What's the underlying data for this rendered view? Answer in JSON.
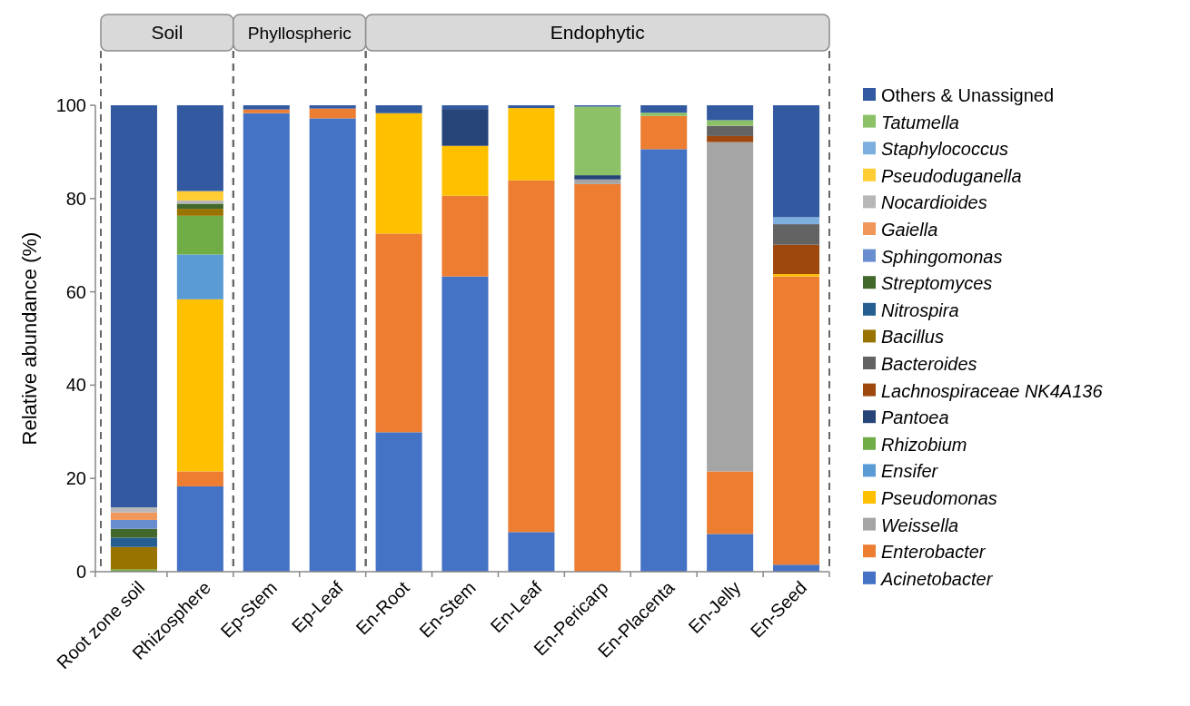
{
  "chart_data": {
    "type": "bar",
    "stacked": true,
    "ylabel": "Relative abundance (%)",
    "ylim": [
      0,
      100
    ],
    "yticks": [
      0,
      20,
      40,
      60,
      80,
      100
    ],
    "grid": false,
    "legend": "right",
    "categories": [
      "Root zone soil",
      "Rhizosphere",
      "Ep-Stem",
      "Ep-Leaf",
      "En-Root",
      "En-Stem",
      "En-Leaf",
      "En-Pericarp",
      "En-Placenta",
      "En-Jelly",
      "En-Seed"
    ],
    "annotations": [
      "Soil",
      "Phyllospheric",
      "Endophytic"
    ],
    "series": [
      {
        "name": "Acinetobacter",
        "color": "#4472c4",
        "values": [
          null,
          18.3,
          98.3,
          97.2,
          29.9,
          63.3,
          8.5,
          null,
          90.6,
          8.1,
          1.5
        ]
      },
      {
        "name": "Enterobacter",
        "color": "#ed7d31",
        "values": [
          null,
          3.2,
          0.8,
          2.1,
          42.6,
          17.3,
          75.4,
          83.1,
          7.1,
          13.4,
          61.8
        ]
      },
      {
        "name": "Weissella",
        "color": "#a5a5a5",
        "values": [
          null,
          null,
          null,
          null,
          null,
          null,
          null,
          1.0,
          null,
          70.6,
          null
        ]
      },
      {
        "name": "Pseudomonas",
        "color": "#ffc000",
        "values": [
          null,
          36.9,
          null,
          null,
          25.8,
          10.7,
          15.5,
          null,
          null,
          null,
          0.5
        ]
      },
      {
        "name": "Ensifer",
        "color": "#5b9bd5",
        "values": [
          null,
          9.6,
          null,
          null,
          null,
          null,
          null,
          null,
          null,
          null,
          null
        ]
      },
      {
        "name": "Rhizobium",
        "color": "#70ad47",
        "values": [
          0.5,
          8.3,
          null,
          null,
          null,
          null,
          null,
          null,
          null,
          null,
          null
        ]
      },
      {
        "name": "Pantoea",
        "color": "#264478",
        "values": [
          null,
          null,
          null,
          null,
          null,
          7.9,
          null,
          0.9,
          null,
          null,
          null
        ]
      },
      {
        "name": "Lachnospiraceae NK4A136",
        "color": "#9e480e",
        "values": [
          null,
          null,
          null,
          null,
          null,
          null,
          null,
          null,
          null,
          1.3,
          6.3
        ]
      },
      {
        "name": "Bacteroides",
        "color": "#636363",
        "values": [
          null,
          null,
          null,
          null,
          null,
          null,
          null,
          null,
          null,
          2.2,
          4.4
        ]
      },
      {
        "name": "Bacillus",
        "color": "#997300",
        "values": [
          4.8,
          1.5,
          null,
          null,
          null,
          null,
          null,
          null,
          null,
          null,
          null
        ]
      },
      {
        "name": "Nitrospira",
        "color": "#255e91",
        "values": [
          2.0,
          null,
          null,
          null,
          null,
          null,
          null,
          null,
          null,
          null,
          null
        ]
      },
      {
        "name": "Streptomyces",
        "color": "#43682b",
        "values": [
          1.9,
          1.1,
          null,
          null,
          null,
          null,
          null,
          null,
          null,
          null,
          null
        ]
      },
      {
        "name": "Sphingomonas",
        "color": "#698ed0",
        "values": [
          1.9,
          null,
          null,
          null,
          null,
          null,
          null,
          null,
          null,
          null,
          null
        ]
      },
      {
        "name": "Gaiella",
        "color": "#f1975a",
        "values": [
          1.6,
          null,
          null,
          null,
          null,
          null,
          null,
          null,
          null,
          null,
          null
        ]
      },
      {
        "name": "Nocardioides",
        "color": "#b7b7b7",
        "values": [
          1.1,
          0.7,
          null,
          null,
          null,
          null,
          null,
          null,
          null,
          null,
          null
        ]
      },
      {
        "name": "Pseudoduganella",
        "color": "#ffcd33",
        "values": [
          null,
          2.0,
          null,
          null,
          null,
          null,
          null,
          null,
          null,
          null,
          null
        ]
      },
      {
        "name": "Staphylococcus",
        "color": "#7cafdd",
        "values": [
          null,
          null,
          null,
          null,
          null,
          null,
          null,
          null,
          null,
          null,
          1.5
        ]
      },
      {
        "name": "Tatumella",
        "color": "#8cc168",
        "values": [
          null,
          null,
          null,
          null,
          null,
          null,
          null,
          14.7,
          0.7,
          1.2,
          null
        ]
      },
      {
        "name": "Others & Unassigned",
        "color": "#335aa1",
        "values": [
          86.2,
          18.4,
          0.9,
          0.7,
          1.7,
          0.8,
          0.6,
          0.3,
          1.6,
          3.2,
          24.0
        ]
      }
    ]
  }
}
